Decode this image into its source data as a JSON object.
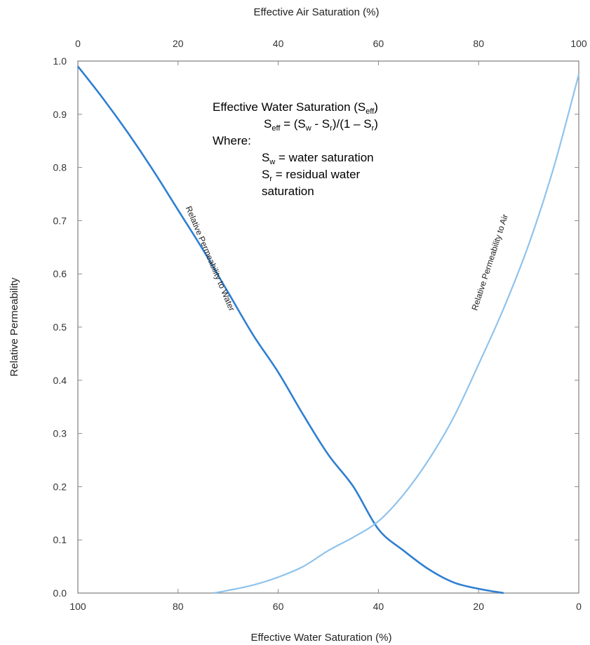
{
  "chart_data": {
    "type": "line",
    "title": "",
    "xlabel_bottom": "Effective Water Saturation (%)",
    "xlabel_top": "Effective Air Saturation (%)",
    "ylabel": "Relative Permeability",
    "x_bottom_ticks": [
      "100",
      "80",
      "60",
      "40",
      "20",
      "0"
    ],
    "x_top_ticks": [
      "0",
      "20",
      "40",
      "60",
      "80",
      "100"
    ],
    "y_ticks": [
      "0.0",
      "0.1",
      "0.2",
      "0.3",
      "0.4",
      "0.5",
      "0.6",
      "0.7",
      "0.8",
      "0.9",
      "1.0"
    ],
    "xlim_water_saturation": [
      100,
      0
    ],
    "xlim_air_saturation": [
      0,
      100
    ],
    "ylim": [
      0,
      1
    ],
    "grid": false,
    "series": [
      {
        "name": "Relative Permeability to Water",
        "color": "#2f7fd1",
        "x_water_saturation": [
          100,
          95,
          90,
          85,
          80,
          75,
          70,
          65,
          60,
          55,
          50,
          45,
          40,
          35,
          30,
          25,
          20,
          15
        ],
        "y": [
          0.99,
          0.93,
          0.865,
          0.795,
          0.72,
          0.645,
          0.565,
          0.485,
          0.415,
          0.335,
          0.26,
          0.2,
          0.12,
          0.08,
          0.045,
          0.02,
          0.008,
          0.0
        ]
      },
      {
        "name": "Relative Permeability to Air",
        "color": "#8fc3ec",
        "x_water_saturation": [
          73,
          70,
          65,
          60,
          55,
          50,
          45,
          40,
          35,
          30,
          25,
          20,
          15,
          10,
          5,
          0
        ],
        "y": [
          0.0,
          0.005,
          0.015,
          0.03,
          0.05,
          0.08,
          0.105,
          0.135,
          0.185,
          0.25,
          0.33,
          0.43,
          0.535,
          0.655,
          0.8,
          0.975
        ]
      }
    ]
  },
  "annotation": {
    "line1_main": "Effective Water Saturation (S",
    "line1_sub": "eff",
    "line1_end": ")",
    "line2_s": "S",
    "line2_sub": "eff",
    "line2_a": " = (S",
    "line2_sub_w": "w",
    "line2_b": " - S",
    "line2_sub_r": "r",
    "line2_c": ")/(1 – S",
    "line2_sub_r2": "r",
    "line2_d": ")",
    "where": "Where:",
    "sw_s": "S",
    "sw_sub": "w",
    "sw_def": " = water saturation",
    "sr_s": "S",
    "sr_sub": "r",
    "sr_def": " = residual water",
    "sr_def2": "saturation"
  }
}
